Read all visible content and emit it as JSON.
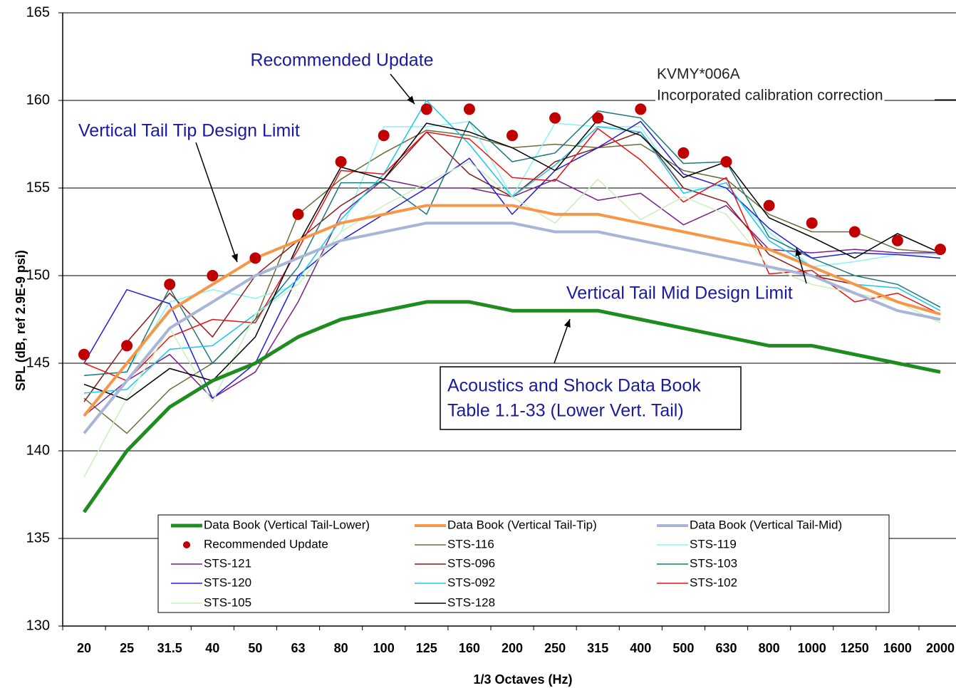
{
  "chart_data": {
    "type": "line",
    "x_label": "1/3 Octaves (Hz)",
    "y_label": "SPL (dB, ref 2.9E-9 psi)",
    "categories": [
      "20",
      "25",
      "31.5",
      "40",
      "50",
      "63",
      "80",
      "100",
      "125",
      "160",
      "200",
      "250",
      "315",
      "400",
      "500",
      "630",
      "800",
      "1000",
      "1250",
      "1600",
      "2000"
    ],
    "ylim": [
      130,
      165
    ],
    "yticks": [
      130,
      135,
      140,
      145,
      150,
      155,
      160,
      165
    ],
    "grid": true,
    "legend": "bottom",
    "annotations": [
      "Recommended Update",
      "KVMY*006A",
      "Incorporated calibration correction",
      "Vertical Tail Tip Design Limit",
      "Vertical Tail Mid Design Limit",
      "Acoustics and Shock Data Book",
      "Table 1.1-33 (Lower Vert. Tail)"
    ],
    "series": [
      {
        "name": "Data Book (Vertical Tail-Lower)",
        "color": "#1e8c1e",
        "line_width": 5,
        "values": [
          136.5,
          140,
          142.5,
          144,
          145,
          146.5,
          147.5,
          148,
          148.5,
          148.5,
          148,
          148,
          148,
          147.5,
          147,
          146.5,
          146,
          146,
          145.5,
          145,
          144.5
        ]
      },
      {
        "name": "Data Book (Vertical Tail-Tip)",
        "color": "#f79646",
        "line_width": 4,
        "values": [
          142,
          145,
          148,
          149.5,
          151,
          152,
          153,
          153.5,
          154,
          154,
          154,
          153.5,
          153.5,
          153,
          152.5,
          152,
          151.5,
          150.5,
          149.5,
          148.5,
          147.8
        ]
      },
      {
        "name": "Data Book (Vertical Tail-Mid)",
        "color": "#a9b5d6",
        "line_width": 4,
        "values": [
          141,
          144,
          147,
          148.5,
          150,
          151,
          152,
          152.5,
          153,
          153,
          153,
          152.5,
          152.5,
          152,
          151.5,
          151,
          150.5,
          150,
          149,
          148,
          147.5
        ]
      },
      {
        "name": "Recommended Update",
        "color": "#c00000",
        "markers": true,
        "values": [
          145.5,
          146,
          149.5,
          150,
          151,
          153.5,
          156.5,
          158,
          159.5,
          159.5,
          158,
          159,
          159,
          159.5,
          157,
          156.5,
          154,
          153,
          152.5,
          152,
          151.5
        ]
      },
      {
        "name": "STS-116",
        "color": "#6b6b3a",
        "line_width": 1.5,
        "values": [
          143,
          141,
          143.5,
          145,
          147.5,
          153.5,
          155.5,
          157,
          158.3,
          158,
          157.3,
          157.5,
          157.3,
          157.5,
          156,
          155.5,
          153.5,
          152.5,
          152.5,
          151.5,
          151.3
        ]
      },
      {
        "name": "STS-119",
        "color": "#88f4f4",
        "line_width": 1.5,
        "values": [
          144.3,
          144.5,
          148.5,
          149.2,
          148.7,
          149.5,
          152.5,
          158.5,
          158.5,
          158.8,
          154.5,
          158.7,
          158.5,
          158.5,
          155,
          155,
          152.5,
          150.5,
          150.8,
          151.2,
          151.2
        ]
      },
      {
        "name": "STS-121",
        "color": "#7b1f8a",
        "line_width": 1.5,
        "values": [
          142,
          144,
          145.5,
          143,
          144.5,
          148.5,
          153.5,
          155.5,
          155,
          155,
          154.5,
          155.5,
          154.3,
          154.7,
          152.9,
          154,
          151.5,
          151.3,
          151.5,
          151.3,
          151.3
        ]
      },
      {
        "name": "STS-096",
        "color": "#8b1a1a",
        "line_width": 1.5,
        "values": [
          142.8,
          146.2,
          149,
          146.5,
          150,
          152,
          154,
          155.5,
          158.2,
          155.8,
          154.5,
          156.5,
          157.3,
          158.2,
          155,
          154.2,
          151.2,
          150,
          149.5,
          148.5,
          147.8
        ]
      },
      {
        "name": "STS-103",
        "color": "#1a7a7a",
        "line_width": 1.5,
        "values": [
          144.3,
          144.5,
          149.3,
          145,
          147.5,
          150.5,
          155.3,
          155.3,
          153.5,
          158.8,
          156.5,
          157,
          159.4,
          159,
          156.4,
          156.5,
          152.2,
          151,
          150,
          149.5,
          148.2
        ]
      },
      {
        "name": "STS-120",
        "color": "#1f1fdd",
        "line_width": 1.5,
        "values": [
          145,
          149.2,
          148.4,
          143,
          145,
          150,
          152,
          153.5,
          155,
          156.7,
          153.5,
          156,
          157.3,
          158.8,
          155.8,
          155,
          152.7,
          151,
          151.3,
          151.2,
          151
        ]
      },
      {
        "name": "STS-092",
        "color": "#19c8f0",
        "line_width": 1.5,
        "values": [
          143.3,
          143.5,
          145.8,
          146,
          147.8,
          149.8,
          153.2,
          155.8,
          160,
          157.5,
          154.5,
          156.3,
          158.5,
          158.2,
          154.7,
          155.3,
          152,
          150.5,
          149.5,
          149.3,
          148
        ]
      },
      {
        "name": "STS-102",
        "color": "#ee1111",
        "line_width": 1.5,
        "values": [
          145,
          144,
          146.5,
          147.5,
          147.3,
          151.5,
          156,
          155.8,
          158.2,
          157.8,
          155.6,
          155.4,
          158.4,
          156.6,
          154.2,
          155.6,
          150.1,
          150.3,
          148.5,
          149,
          147.8
        ]
      },
      {
        "name": "STS-105",
        "color": "#c8f0bc",
        "line_width": 1.5,
        "values": [
          138.5,
          143,
          147,
          142.8,
          147.8,
          149.5,
          152.5,
          154,
          155.3,
          156.5,
          154.5,
          153,
          155.5,
          153.2,
          154.5,
          153.5,
          150.5,
          149.5,
          149,
          148.5,
          147.3
        ]
      },
      {
        "name": "STS-128",
        "color": "#000000",
        "line_width": 1.5,
        "values": [
          143.8,
          142.9,
          144.7,
          144,
          146.5,
          151.8,
          156.2,
          155.5,
          158.7,
          158.2,
          157.3,
          156,
          158.9,
          158,
          155.6,
          156.5,
          153.3,
          152.2,
          151,
          152.4,
          151.3
        ]
      }
    ]
  }
}
